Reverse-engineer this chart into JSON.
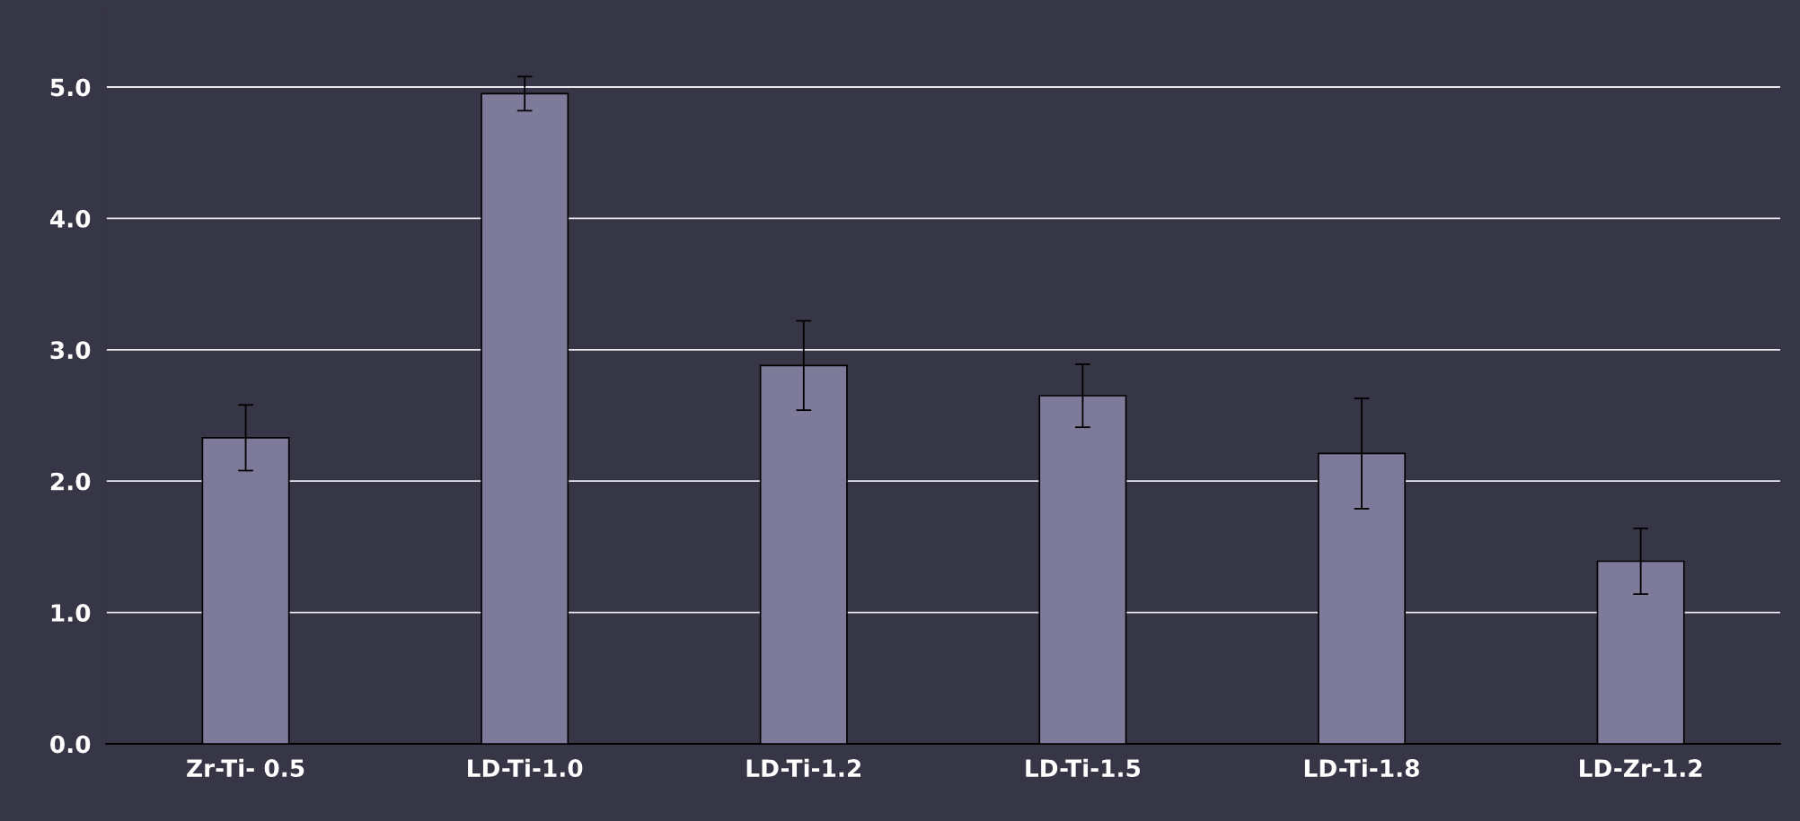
{
  "chart_data": {
    "type": "bar",
    "categories": [
      "Zr-Ti- 0.5",
      "LD-Ti-1.0",
      "LD-Ti-1.2",
      "LD-Ti-1.5",
      "LD-Ti-1.8",
      "LD-Zr-1.2"
    ],
    "values": [
      2.33,
      4.95,
      2.88,
      2.65,
      2.21,
      1.39
    ],
    "errors": [
      0.25,
      0.13,
      0.34,
      0.24,
      0.42,
      0.25
    ],
    "color": "#7d7a9a",
    "ylim": [
      0,
      5.6
    ],
    "yticks": [
      {
        "value": 0,
        "label": "0.0"
      },
      {
        "value": 1,
        "label": "1.0"
      },
      {
        "value": 2,
        "label": "2.0"
      },
      {
        "value": 3,
        "label": "3.0"
      },
      {
        "value": 4,
        "label": "4.0"
      },
      {
        "value": 5,
        "label": "5.0"
      }
    ],
    "grid": "y",
    "legend": false
  }
}
